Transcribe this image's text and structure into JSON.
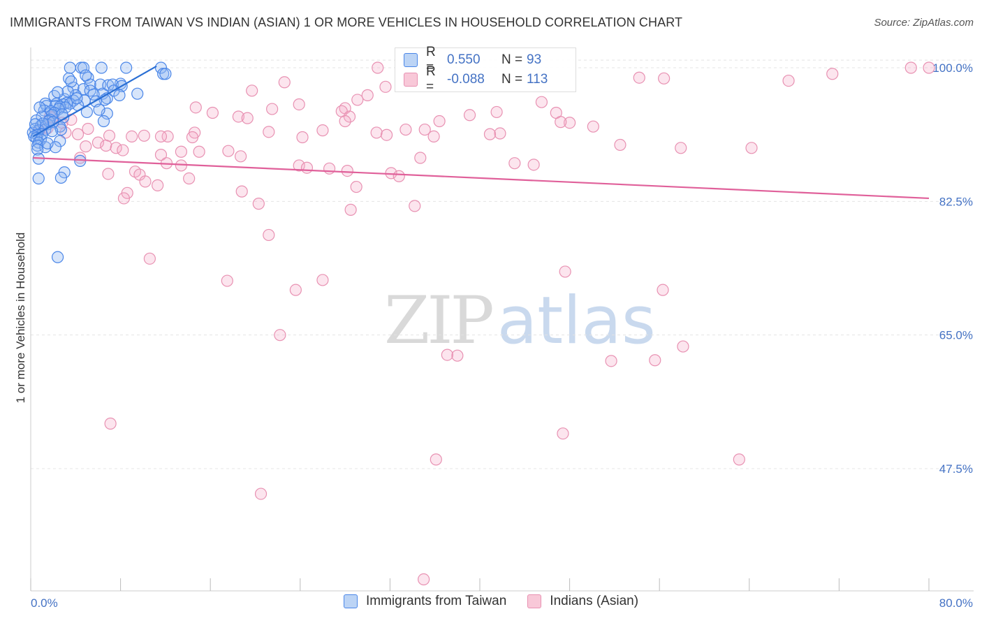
{
  "header": {
    "title": "IMMIGRANTS FROM TAIWAN VS INDIAN (ASIAN) 1 OR MORE VEHICLES IN HOUSEHOLD CORRELATION CHART",
    "source": "Source: ZipAtlas.com"
  },
  "watermark": {
    "zip": "ZIP",
    "atlas": "atlas"
  },
  "legend_top": {
    "rows": [
      {
        "r_label": "R =",
        "r_value": "0.550",
        "n_label": "N =",
        "n_value": "93"
      },
      {
        "r_label": "R =",
        "r_value": "-0.088",
        "n_label": "N =",
        "n_value": "113"
      }
    ]
  },
  "chart_data": {
    "type": "scatter",
    "title": "IMMIGRANTS FROM TAIWAN VS INDIAN (ASIAN) 1 OR MORE VEHICLES IN HOUSEHOLD CORRELATION CHART",
    "xlabel": "",
    "ylabel": "1 or more Vehicles in Household",
    "xlim": [
      0,
      80
    ],
    "ylim": [
      30,
      101
    ],
    "x_tick_labels": [
      "0.0%",
      "80.0%"
    ],
    "y_ticks": [
      47.5,
      65.0,
      82.5,
      100.0
    ],
    "y_tick_labels": [
      "47.5%",
      "65.0%",
      "82.5%",
      "100.0%"
    ],
    "grid": true,
    "legend_position": "bottom",
    "colors": {
      "taiwan": "#4a86e8",
      "indian": "#e06c9a",
      "taiwan_line": "#2a6fd4",
      "indian_line": "#e0609a"
    },
    "series": [
      {
        "name": "Immigrants from Taiwan",
        "R": 0.55,
        "N": 93,
        "trend": {
          "x0": 0.2,
          "y0": 91.0,
          "x1": 11.2,
          "y1": 100.2
        },
        "points": [
          [
            3.5,
            100
          ],
          [
            4.5,
            100
          ],
          [
            4.7,
            100
          ],
          [
            6.3,
            100
          ],
          [
            8.5,
            100
          ],
          [
            11.6,
            100
          ],
          [
            11.8,
            99.2
          ],
          [
            12.0,
            99.2
          ],
          [
            5.1,
            98.7
          ],
          [
            3.4,
            98.6
          ],
          [
            5.3,
            97.8
          ],
          [
            6.2,
            97.8
          ],
          [
            8.0,
            97.9
          ],
          [
            6.9,
            97.7
          ],
          [
            7.3,
            97.8
          ],
          [
            8.1,
            97.6
          ],
          [
            3.8,
            97.4
          ],
          [
            4.7,
            97.2
          ],
          [
            5.3,
            97.0
          ],
          [
            6.4,
            96.6
          ],
          [
            5.6,
            96.5
          ],
          [
            9.5,
            96.6
          ],
          [
            4.0,
            96.4
          ],
          [
            2.1,
            96.3
          ],
          [
            6.8,
            96.0
          ],
          [
            3.0,
            95.9
          ],
          [
            6.6,
            95.8
          ],
          [
            3.8,
            95.7
          ],
          [
            4.8,
            95.7
          ],
          [
            3.2,
            95.4
          ],
          [
            2.3,
            95.3
          ],
          [
            2.9,
            95.2
          ],
          [
            3.5,
            95.3
          ],
          [
            1.3,
            95.3
          ],
          [
            4.2,
            95.1
          ],
          [
            1.4,
            95.0
          ],
          [
            2.2,
            95.0
          ],
          [
            2.6,
            94.9
          ],
          [
            3.1,
            94.8
          ],
          [
            2.5,
            94.6
          ],
          [
            1.2,
            94.4
          ],
          [
            1.8,
            94.3
          ],
          [
            5.0,
            94.2
          ],
          [
            6.8,
            94.0
          ],
          [
            2.1,
            94.1
          ],
          [
            1.9,
            93.8
          ],
          [
            1.0,
            93.6
          ],
          [
            2.9,
            93.5
          ],
          [
            1.7,
            93.2
          ],
          [
            0.5,
            93.1
          ],
          [
            6.5,
            93.0
          ],
          [
            1.5,
            92.6
          ],
          [
            0.9,
            92.4
          ],
          [
            2.6,
            92.3
          ],
          [
            0.4,
            92.0
          ],
          [
            1.3,
            91.9
          ],
          [
            0.7,
            91.8
          ],
          [
            2.7,
            91.9
          ],
          [
            0.2,
            91.5
          ],
          [
            1.0,
            91.3
          ],
          [
            0.6,
            91.2
          ],
          [
            0.3,
            91.0
          ],
          [
            0.5,
            90.8
          ],
          [
            0.9,
            90.6
          ],
          [
            2.6,
            90.4
          ],
          [
            0.7,
            90.2
          ],
          [
            0.6,
            89.8
          ],
          [
            2.2,
            89.6
          ],
          [
            1.3,
            89.6
          ],
          [
            0.6,
            89.3
          ],
          [
            0.7,
            88.1
          ],
          [
            4.4,
            87.8
          ],
          [
            3.0,
            86.3
          ],
          [
            2.7,
            85.6
          ],
          [
            0.7,
            85.5
          ],
          [
            2.4,
            75.2
          ],
          [
            1.6,
            93.0
          ],
          [
            2.0,
            92.9
          ],
          [
            1.1,
            92.7
          ],
          [
            3.3,
            96.9
          ],
          [
            4.1,
            96.0
          ],
          [
            5.8,
            95.6
          ],
          [
            7.4,
            97.0
          ],
          [
            2.8,
            93.9
          ],
          [
            1.9,
            91.7
          ],
          [
            0.8,
            94.8
          ],
          [
            6.1,
            94.5
          ],
          [
            3.6,
            98.2
          ],
          [
            4.9,
            99.0
          ],
          [
            2.4,
            96.8
          ],
          [
            0.4,
            92.6
          ],
          [
            1.5,
            90.1
          ],
          [
            7.9,
            96.4
          ]
        ]
      },
      {
        "name": "Indians (Asian)",
        "R": -0.088,
        "N": 113,
        "trend": {
          "x0": 0.2,
          "y0": 88.2,
          "x1": 80.0,
          "y1": 82.9
        },
        "points": [
          [
            30.9,
            100
          ],
          [
            78.4,
            100
          ],
          [
            80.0,
            100
          ],
          [
            54.2,
            98.7
          ],
          [
            56.4,
            98.6
          ],
          [
            67.5,
            98.3
          ],
          [
            71.4,
            99.2
          ],
          [
            22.6,
            98.1
          ],
          [
            31.6,
            97.5
          ],
          [
            19.7,
            97.0
          ],
          [
            30.0,
            96.4
          ],
          [
            29.1,
            95.8
          ],
          [
            45.5,
            95.5
          ],
          [
            23.9,
            95.2
          ],
          [
            14.7,
            94.8
          ],
          [
            28.0,
            94.7
          ],
          [
            21.5,
            94.6
          ],
          [
            27.7,
            94.3
          ],
          [
            16.2,
            94.1
          ],
          [
            41.5,
            94.2
          ],
          [
            46.8,
            94.1
          ],
          [
            39.1,
            93.8
          ],
          [
            18.5,
            93.6
          ],
          [
            19.3,
            93.4
          ],
          [
            28.4,
            93.6
          ],
          [
            28.0,
            93.0
          ],
          [
            36.4,
            93.0
          ],
          [
            48.0,
            92.8
          ],
          [
            47.2,
            92.9
          ],
          [
            50.1,
            92.3
          ],
          [
            33.4,
            91.9
          ],
          [
            35.1,
            91.9
          ],
          [
            26.0,
            91.8
          ],
          [
            30.8,
            91.5
          ],
          [
            21.2,
            91.6
          ],
          [
            14.6,
            91.5
          ],
          [
            35.9,
            91.0
          ],
          [
            41.8,
            91.4
          ],
          [
            40.9,
            91.3
          ],
          [
            4.2,
            91.3
          ],
          [
            7.0,
            91.1
          ],
          [
            3.6,
            93.2
          ],
          [
            1.7,
            93.6
          ],
          [
            5.1,
            92.0
          ],
          [
            0.8,
            91.8
          ],
          [
            1.5,
            92.1
          ],
          [
            2.8,
            92.8
          ],
          [
            2.0,
            93.5
          ],
          [
            3.1,
            91.5
          ],
          [
            24.2,
            90.9
          ],
          [
            14.4,
            90.9
          ],
          [
            12.2,
            91.0
          ],
          [
            11.6,
            91.0
          ],
          [
            10.1,
            91.1
          ],
          [
            9.0,
            91.0
          ],
          [
            6.0,
            90.2
          ],
          [
            6.7,
            89.8
          ],
          [
            4.9,
            89.7
          ],
          [
            7.6,
            89.5
          ],
          [
            8.2,
            89.2
          ],
          [
            17.6,
            89.1
          ],
          [
            15.0,
            89.0
          ],
          [
            13.4,
            89.0
          ],
          [
            18.7,
            88.4
          ],
          [
            11.6,
            88.6
          ],
          [
            4.4,
            88.2
          ],
          [
            34.7,
            88.2
          ],
          [
            23.9,
            87.2
          ],
          [
            24.6,
            86.9
          ],
          [
            12.1,
            87.5
          ],
          [
            13.4,
            87.2
          ],
          [
            9.3,
            86.4
          ],
          [
            9.7,
            86.0
          ],
          [
            6.9,
            86.1
          ],
          [
            14.1,
            85.5
          ],
          [
            10.2,
            85.1
          ],
          [
            11.3,
            84.6
          ],
          [
            26.6,
            86.8
          ],
          [
            28.2,
            86.5
          ],
          [
            32.1,
            86.2
          ],
          [
            32.8,
            85.8
          ],
          [
            43.1,
            87.5
          ],
          [
            44.8,
            87.3
          ],
          [
            52.5,
            89.9
          ],
          [
            57.9,
            89.5
          ],
          [
            64.2,
            89.5
          ],
          [
            29.0,
            84.4
          ],
          [
            18.8,
            83.8
          ],
          [
            8.6,
            83.6
          ],
          [
            8.3,
            82.9
          ],
          [
            20.3,
            82.2
          ],
          [
            28.5,
            81.4
          ],
          [
            34.2,
            81.9
          ],
          [
            21.2,
            78.1
          ],
          [
            10.6,
            75.0
          ],
          [
            47.6,
            73.3
          ],
          [
            26.0,
            72.2
          ],
          [
            17.5,
            72.1
          ],
          [
            23.6,
            70.9
          ],
          [
            56.3,
            70.9
          ],
          [
            58.1,
            63.5
          ],
          [
            51.7,
            61.6
          ],
          [
            22.2,
            65.0
          ],
          [
            38.0,
            62.3
          ],
          [
            55.6,
            61.7
          ],
          [
            37.1,
            62.4
          ],
          [
            36.1,
            48.7
          ],
          [
            63.1,
            48.7
          ],
          [
            7.1,
            53.4
          ],
          [
            47.4,
            52.1
          ],
          [
            20.5,
            44.2
          ],
          [
            35.0,
            33.0
          ],
          [
            31.7,
            91.2
          ]
        ]
      }
    ]
  },
  "legend_bottom": {
    "items": [
      {
        "label": "Immigrants from Taiwan"
      },
      {
        "label": "Indians (Asian)"
      }
    ]
  }
}
